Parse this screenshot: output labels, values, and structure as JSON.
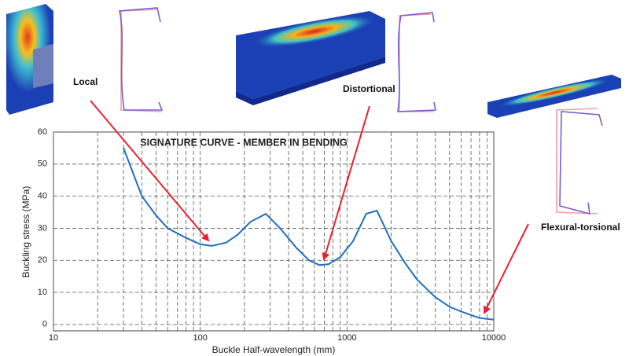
{
  "chart_data": {
    "type": "line",
    "title": "SIGNATURE CURVE - MEMBER IN BENDING",
    "x_label": "Buckle Half-wavelength (mm)",
    "y_label": "Buckling stress (MPa)",
    "annotations": [
      "Local",
      "Distortional",
      "Flexural-torsional"
    ],
    "x": [
      30,
      40,
      50,
      60,
      80,
      100,
      120,
      150,
      180,
      220,
      280,
      350,
      450,
      550,
      650,
      750,
      900,
      1100,
      1350,
      1600,
      2000,
      2500,
      3000,
      4000,
      5000,
      6000,
      8000,
      10000
    ],
    "values": [
      55,
      40,
      34,
      30,
      27,
      25,
      24.5,
      25.5,
      28,
      32,
      34.5,
      30,
      24,
      20,
      18.5,
      18.8,
      21,
      26,
      34.5,
      35.5,
      26,
      19,
      14,
      8.5,
      5.5,
      4,
      2,
      1.5
    ],
    "color": "#1f6fc0",
    "xlim": [
      10,
      10000
    ],
    "xticks": [
      10,
      100,
      1000,
      10000
    ],
    "xscale": "log",
    "ylim": [
      -2,
      60
    ],
    "yticks": [
      0,
      10,
      20,
      30,
      40,
      50,
      60
    ],
    "grid": true
  }
}
